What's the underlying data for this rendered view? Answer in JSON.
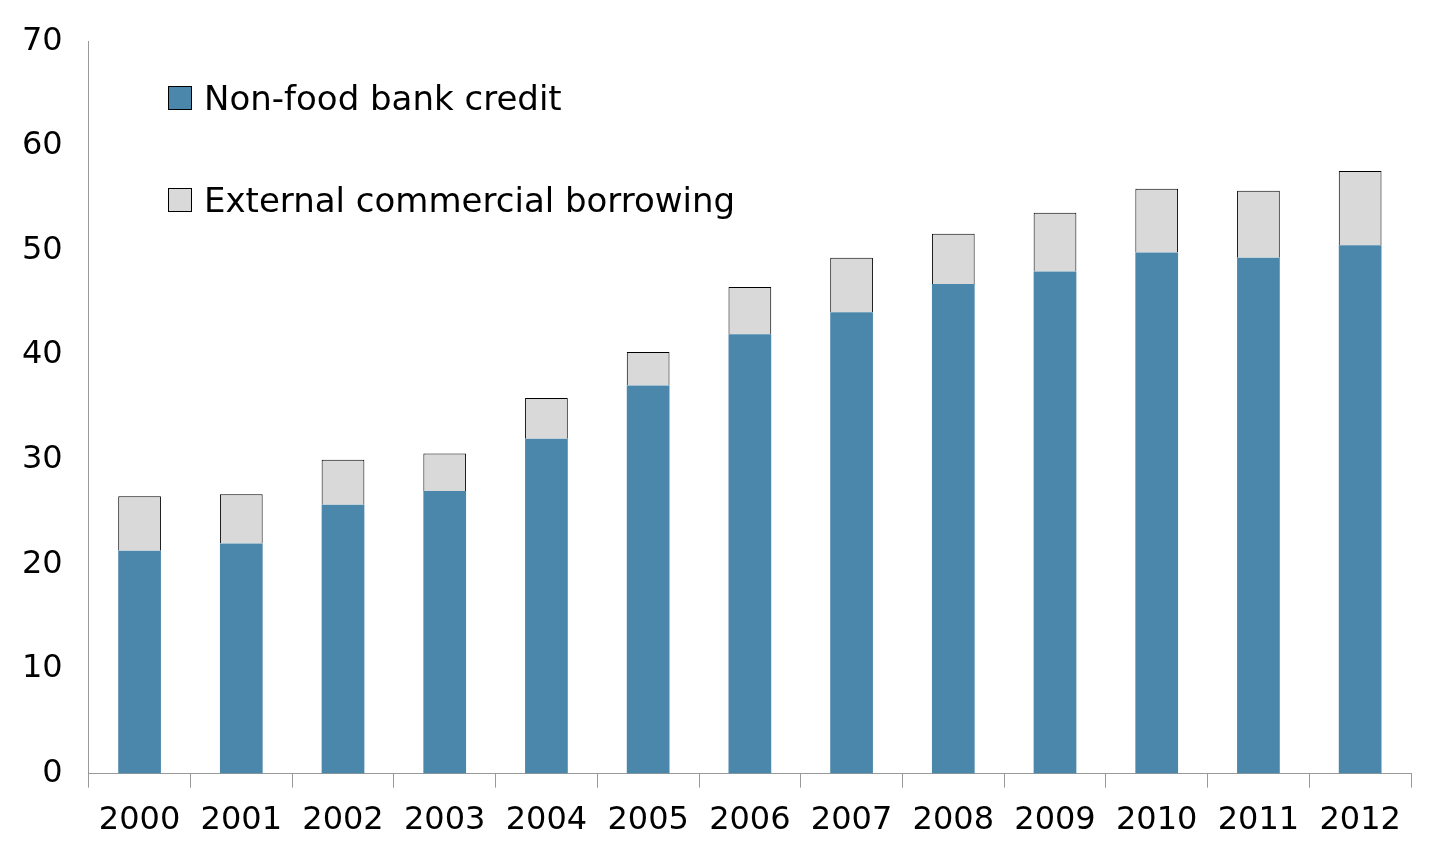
{
  "chart_data": {
    "type": "bar",
    "stacked": true,
    "categories": [
      "2000",
      "2001",
      "2002",
      "2003",
      "2004",
      "2005",
      "2006",
      "2007",
      "2008",
      "2009",
      "2010",
      "2011",
      "2012"
    ],
    "series": [
      {
        "name": "Non-food bank credit",
        "color": "#4a87ab",
        "values": [
          21.3,
          22.0,
          25.7,
          27.0,
          32.0,
          37.1,
          42.0,
          44.1,
          46.8,
          48.0,
          49.8,
          49.3,
          50.5
        ]
      },
      {
        "name": "External commercial borrowing",
        "color": "#d9d9d9",
        "values": [
          5.2,
          4.7,
          4.3,
          3.6,
          3.9,
          3.2,
          4.5,
          5.2,
          4.8,
          5.6,
          6.1,
          6.4,
          7.1
        ]
      }
    ],
    "ylim": [
      0,
      70
    ],
    "yticks": [
      0,
      10,
      20,
      30,
      40,
      50,
      60,
      70
    ],
    "grid": false,
    "legend": "top left"
  }
}
